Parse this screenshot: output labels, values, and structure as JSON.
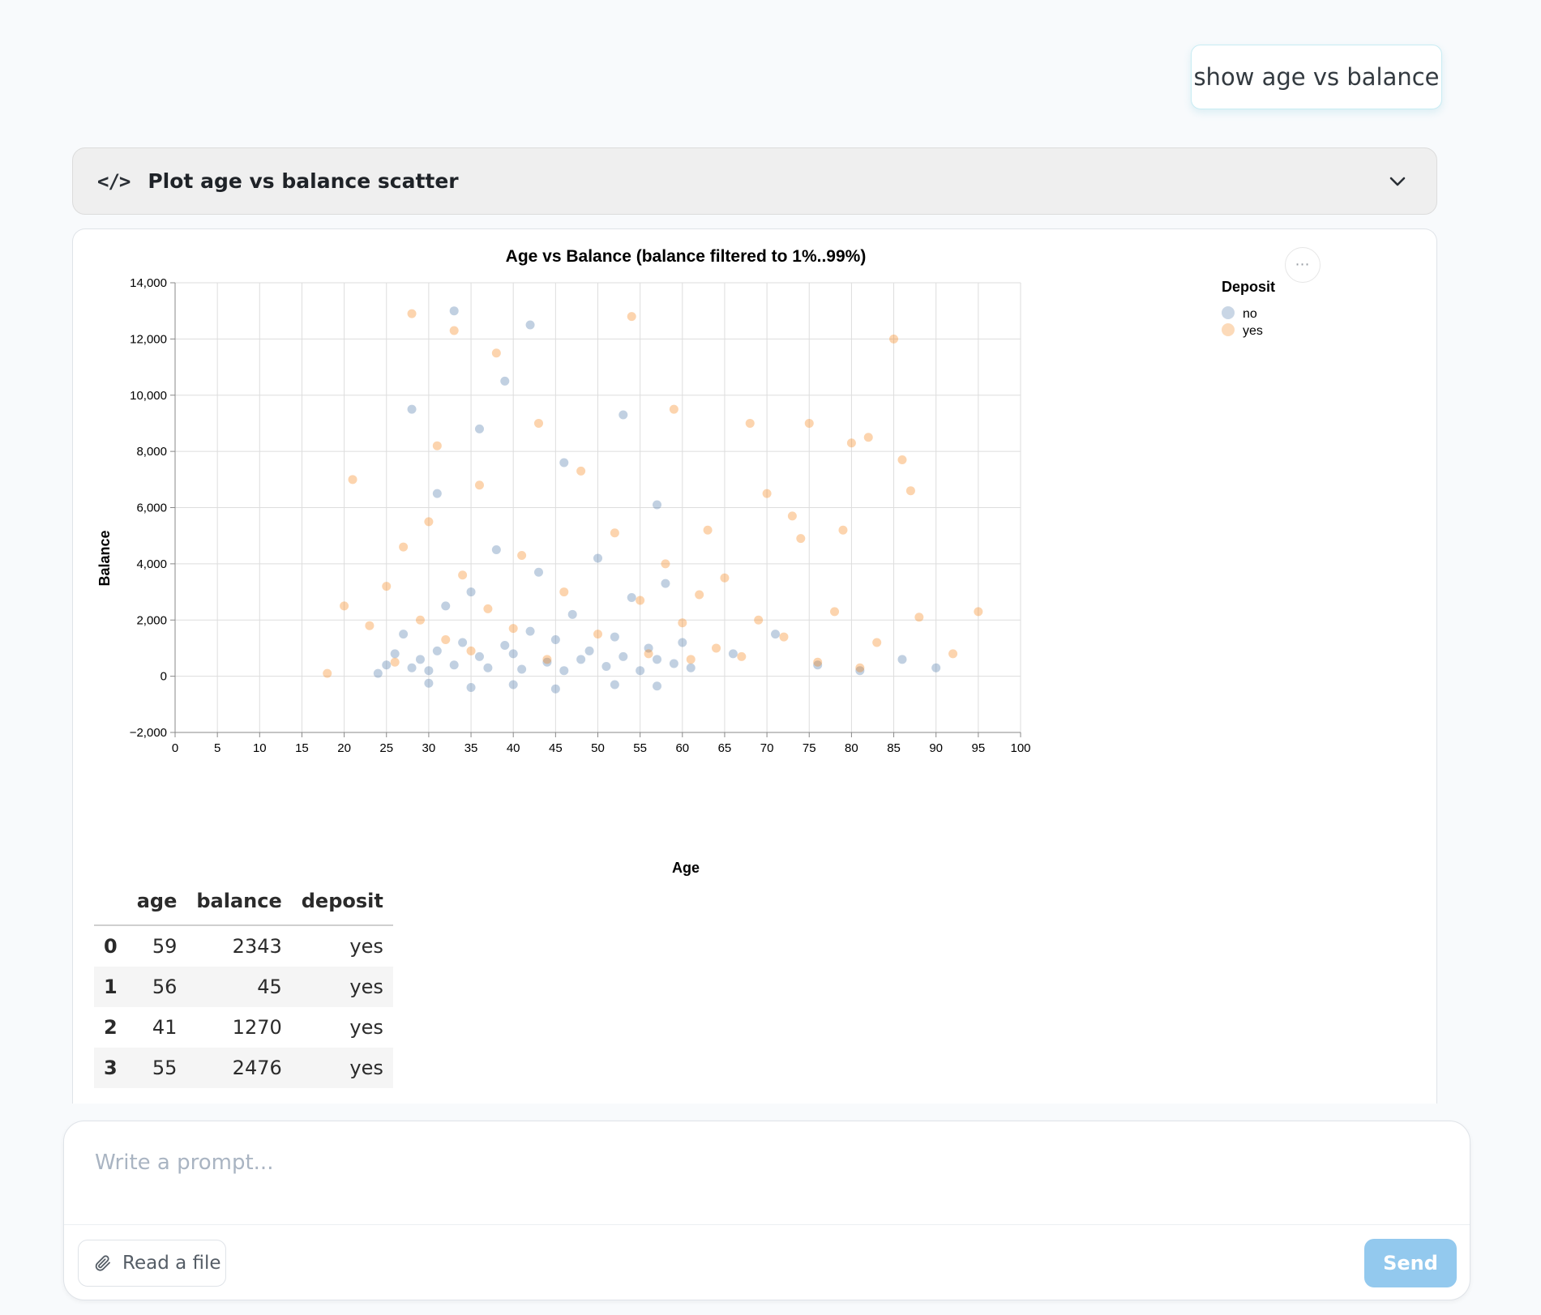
{
  "user_message": "show age vs balance",
  "tool_call": {
    "title": "Plot age vs balance scatter"
  },
  "chart_menu_label": "⋯",
  "chart_data": {
    "type": "scatter",
    "title": "Age vs Balance (balance filtered to 1%..99%)",
    "xlabel": "Age",
    "ylabel": "Balance",
    "xlim": [
      0,
      100
    ],
    "ylim": [
      -2000,
      14000
    ],
    "x_ticks": [
      0,
      5,
      10,
      15,
      20,
      25,
      30,
      35,
      40,
      45,
      50,
      55,
      60,
      65,
      70,
      75,
      80,
      85,
      90,
      95,
      100
    ],
    "y_ticks": [
      -2000,
      0,
      2000,
      4000,
      6000,
      8000,
      10000,
      12000,
      14000
    ],
    "x_tick_labels": [
      "0",
      "5",
      "10",
      "15",
      "20",
      "25",
      "30",
      "35",
      "40",
      "45",
      "50",
      "55",
      "60",
      "65",
      "70",
      "75",
      "80",
      "85",
      "90",
      "95",
      "100"
    ],
    "y_tick_labels": [
      "−2,000",
      "0",
      "2,000",
      "4,000",
      "6,000",
      "8,000",
      "10,000",
      "12,000",
      "14,000"
    ],
    "grid": true,
    "legend": {
      "title": "Deposit",
      "placement": "top-right",
      "entries": [
        {
          "label": "no",
          "color": "#4c78a8"
        },
        {
          "label": "yes",
          "color": "#f58518"
        }
      ]
    },
    "series": [
      {
        "name": "no",
        "color": "#4c78a8",
        "points": [
          [
            24,
            100
          ],
          [
            25,
            400
          ],
          [
            26,
            800
          ],
          [
            27,
            1500
          ],
          [
            28,
            300
          ],
          [
            29,
            600
          ],
          [
            30,
            200
          ],
          [
            31,
            900
          ],
          [
            32,
            2500
          ],
          [
            33,
            400
          ],
          [
            34,
            1200
          ],
          [
            35,
            3000
          ],
          [
            36,
            700
          ],
          [
            37,
            300
          ],
          [
            38,
            4500
          ],
          [
            39,
            1100
          ],
          [
            40,
            800
          ],
          [
            41,
            250
          ],
          [
            42,
            1600
          ],
          [
            43,
            3700
          ],
          [
            44,
            500
          ],
          [
            45,
            1300
          ],
          [
            46,
            200
          ],
          [
            47,
            2200
          ],
          [
            48,
            600
          ],
          [
            49,
            900
          ],
          [
            50,
            4200
          ],
          [
            51,
            350
          ],
          [
            52,
            1400
          ],
          [
            53,
            700
          ],
          [
            54,
            2800
          ],
          [
            55,
            200
          ],
          [
            56,
            1000
          ],
          [
            57,
            600
          ],
          [
            58,
            3300
          ],
          [
            59,
            450
          ],
          [
            60,
            1200
          ],
          [
            31,
            6500
          ],
          [
            36,
            8800
          ],
          [
            39,
            10500
          ],
          [
            42,
            12500
          ],
          [
            33,
            13000
          ],
          [
            28,
            9500
          ],
          [
            46,
            7600
          ],
          [
            53,
            9300
          ],
          [
            57,
            6100
          ],
          [
            61,
            300
          ],
          [
            66,
            800
          ],
          [
            71,
            1500
          ],
          [
            76,
            400
          ],
          [
            81,
            200
          ],
          [
            86,
            600
          ],
          [
            90,
            300
          ],
          [
            35,
            -400
          ],
          [
            40,
            -300
          ],
          [
            45,
            -450
          ],
          [
            52,
            -300
          ],
          [
            57,
            -350
          ],
          [
            30,
            -250
          ]
        ]
      },
      {
        "name": "yes",
        "color": "#f58518",
        "points": [
          [
            18,
            100
          ],
          [
            20,
            2500
          ],
          [
            21,
            7000
          ],
          [
            23,
            1800
          ],
          [
            25,
            3200
          ],
          [
            26,
            500
          ],
          [
            27,
            4600
          ],
          [
            28,
            12900
          ],
          [
            29,
            2000
          ],
          [
            30,
            5500
          ],
          [
            31,
            8200
          ],
          [
            32,
            1300
          ],
          [
            33,
            12300
          ],
          [
            34,
            3600
          ],
          [
            35,
            900
          ],
          [
            36,
            6800
          ],
          [
            37,
            2400
          ],
          [
            38,
            11500
          ],
          [
            40,
            1700
          ],
          [
            41,
            4300
          ],
          [
            43,
            9000
          ],
          [
            44,
            600
          ],
          [
            46,
            3000
          ],
          [
            48,
            7300
          ],
          [
            50,
            1500
          ],
          [
            52,
            5100
          ],
          [
            54,
            12800
          ],
          [
            55,
            2700
          ],
          [
            56,
            800
          ],
          [
            58,
            4000
          ],
          [
            59,
            9500
          ],
          [
            60,
            1900
          ],
          [
            61,
            600
          ],
          [
            62,
            2900
          ],
          [
            63,
            5200
          ],
          [
            64,
            1000
          ],
          [
            65,
            3500
          ],
          [
            67,
            700
          ],
          [
            69,
            2000
          ],
          [
            70,
            6500
          ],
          [
            72,
            1400
          ],
          [
            74,
            4900
          ],
          [
            75,
            9000
          ],
          [
            76,
            500
          ],
          [
            78,
            2300
          ],
          [
            80,
            8300
          ],
          [
            81,
            300
          ],
          [
            82,
            8500
          ],
          [
            83,
            1200
          ],
          [
            85,
            12000
          ],
          [
            86,
            7700
          ],
          [
            87,
            6600
          ],
          [
            88,
            2100
          ],
          [
            92,
            800
          ],
          [
            95,
            2300
          ],
          [
            79,
            5200
          ],
          [
            68,
            9000
          ],
          [
            73,
            5700
          ]
        ]
      }
    ]
  },
  "table": {
    "columns": [
      "age",
      "balance",
      "deposit"
    ],
    "rows": [
      {
        "index": "0",
        "age": "59",
        "balance": "2343",
        "deposit": "yes"
      },
      {
        "index": "1",
        "age": "56",
        "balance": "45",
        "deposit": "yes"
      },
      {
        "index": "2",
        "age": "41",
        "balance": "1270",
        "deposit": "yes"
      },
      {
        "index": "3",
        "age": "55",
        "balance": "2476",
        "deposit": "yes"
      }
    ]
  },
  "composer": {
    "placeholder": "Write a prompt...",
    "value": "",
    "read_file_label": "Read a file",
    "send_label": "Send"
  }
}
